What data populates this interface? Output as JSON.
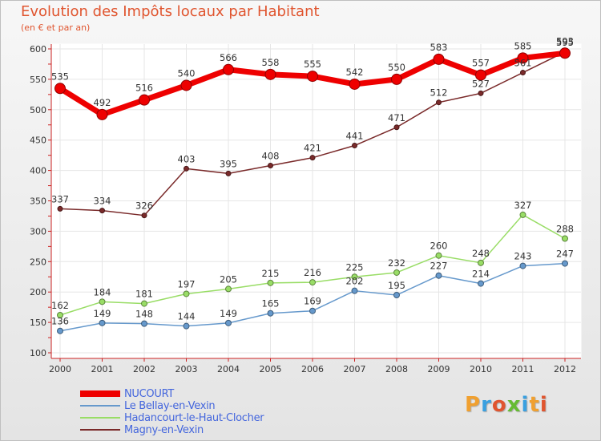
{
  "title": "Evolution des Impôts locaux par Habitant",
  "subtitle": "(en € et par an)",
  "brand": {
    "text": "Proxiti",
    "colors": [
      "#f0a030",
      "#3aa0e0",
      "#e0552f",
      "#66bb33",
      "#3aa0e0",
      "#f0a030",
      "#e0552f"
    ]
  },
  "chart_data": {
    "type": "line",
    "title": "Evolution des Impôts locaux par Habitant",
    "subtitle": "(en € et par an)",
    "xlabel": "",
    "ylabel": "",
    "ylim": [
      100,
      600
    ],
    "yticks": [
      100,
      150,
      200,
      250,
      300,
      350,
      400,
      450,
      500,
      550,
      600
    ],
    "grid": true,
    "legend_position": "bottom-left",
    "categories": [
      "2000",
      "2001",
      "2002",
      "2003",
      "2004",
      "2005",
      "2006",
      "2007",
      "2008",
      "2009",
      "2010",
      "2011",
      "2012"
    ],
    "series": [
      {
        "name": "Magny-en-Vexin",
        "color": "#7a2a2a",
        "width": 1.5,
        "marker": 3,
        "values": [
          337,
          334,
          326,
          403,
          395,
          408,
          421,
          441,
          471,
          512,
          527,
          561,
          595
        ]
      },
      {
        "name": "Hadancourt-le-Haut-Clocher",
        "color": "#99dd66",
        "width": 1.5,
        "marker": 3.5,
        "values": [
          162,
          184,
          181,
          197,
          205,
          215,
          216,
          225,
          232,
          260,
          248,
          327,
          288
        ]
      },
      {
        "name": "Le Bellay-en-Vexin",
        "color": "#6699cc",
        "width": 1.5,
        "marker": 3.5,
        "values": [
          136,
          149,
          148,
          144,
          149,
          165,
          169,
          202,
          195,
          227,
          214,
          243,
          247
        ]
      },
      {
        "name": "NUCOURT",
        "color": "#ee0000",
        "width": 7,
        "marker": 6.5,
        "values": [
          535,
          492,
          516,
          540,
          566,
          558,
          555,
          542,
          550,
          583,
          557,
          585,
          593
        ]
      }
    ],
    "legend_order": [
      "NUCOURT",
      "Le Bellay-en-Vexin",
      "Hadancourt-le-Haut-Clocher",
      "Magny-en-Vexin"
    ]
  }
}
